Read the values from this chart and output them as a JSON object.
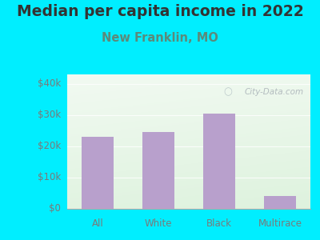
{
  "title": "Median per capita income in 2022",
  "subtitle": "New Franklin, MO",
  "categories": [
    "All",
    "White",
    "Black",
    "Multirace"
  ],
  "values": [
    23000,
    24500,
    30500,
    4200
  ],
  "bar_color": "#b8a0cc",
  "background_color": "#00eeff",
  "title_color": "#333333",
  "subtitle_color": "#5b8a7a",
  "tick_color": "#7a7a7a",
  "ytick_labels": [
    "$0",
    "$10k",
    "$20k",
    "$30k",
    "$40k"
  ],
  "ytick_values": [
    0,
    10000,
    20000,
    30000,
    40000
  ],
  "ylim": [
    0,
    43000
  ],
  "watermark": "City-Data.com",
  "title_fontsize": 13.5,
  "subtitle_fontsize": 10.5,
  "tick_fontsize": 8.5
}
